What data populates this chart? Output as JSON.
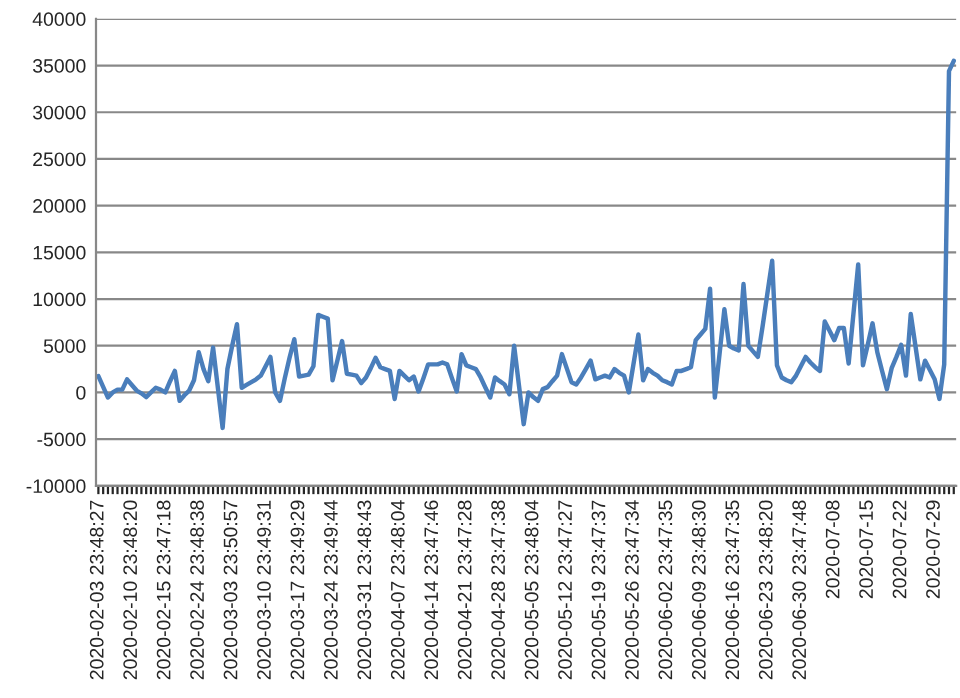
{
  "chart_data": {
    "type": "line",
    "categories": [
      "2020-02-03 23:48:27",
      null,
      null,
      null,
      null,
      null,
      null,
      "2020-02-10 23:48:20",
      null,
      null,
      null,
      null,
      null,
      null,
      "2020-02-15 23:47:18",
      null,
      null,
      null,
      null,
      null,
      null,
      "2020-02-24 23:48:38",
      null,
      null,
      null,
      null,
      null,
      null,
      "2020-03-03 23:50:57",
      null,
      null,
      null,
      null,
      null,
      null,
      "2020-03-10 23:49:31",
      null,
      null,
      null,
      null,
      null,
      null,
      "2020-03-17 23:49:29",
      null,
      null,
      null,
      null,
      null,
      null,
      "2020-03-24 23:49:44",
      null,
      null,
      null,
      null,
      null,
      null,
      "2020-03-31 23:48:43",
      null,
      null,
      null,
      null,
      null,
      null,
      "2020-04-07 23:48:04",
      null,
      null,
      null,
      null,
      null,
      null,
      "2020-04-14 23:47:46",
      null,
      null,
      null,
      null,
      null,
      null,
      "2020-04-21 23:47:28",
      null,
      null,
      null,
      null,
      null,
      null,
      "2020-04-28 23:47:38",
      null,
      null,
      null,
      null,
      null,
      null,
      "2020-05-05 23:48:04",
      null,
      null,
      null,
      null,
      null,
      null,
      "2020-05-12 23:47:27",
      null,
      null,
      null,
      null,
      null,
      null,
      "2020-05-19 23:47:37",
      null,
      null,
      null,
      null,
      null,
      null,
      "2020-05-26 23:47:34",
      null,
      null,
      null,
      null,
      null,
      null,
      "2020-06-02 23:47:35",
      null,
      null,
      null,
      null,
      null,
      null,
      "2020-06-09 23:48:30",
      null,
      null,
      null,
      null,
      null,
      null,
      "2020-06-16 23:47:35",
      null,
      null,
      null,
      null,
      null,
      null,
      "2020-06-23 23:48:20",
      null,
      null,
      null,
      null,
      null,
      null,
      "2020-06-30 23:47:48",
      null,
      null,
      null,
      null,
      null,
      null,
      "2020-07-08",
      null,
      null,
      null,
      null,
      null,
      null,
      "2020-07-15",
      null,
      null,
      null,
      null,
      null,
      null,
      "2020-07-22",
      null,
      null,
      null,
      null,
      null,
      null,
      "2020-07-29",
      null,
      null,
      null,
      null
    ],
    "series": [
      {
        "color": "#4a7ebb",
        "values": [
          1750,
          600,
          -550,
          0,
          300,
          300,
          1400,
          800,
          200,
          -100,
          -500,
          0,
          500,
          300,
          0,
          1200,
          2300,
          -900,
          -300,
          200,
          1300,
          4300,
          2500,
          1200,
          4800,
          500,
          -3800,
          2500,
          5000,
          7300,
          500,
          800,
          1100,
          1400,
          1800,
          2800,
          3800,
          0,
          -900,
          1500,
          3700,
          5700,
          1700,
          1800,
          1900,
          2800,
          8300,
          8100,
          7900,
          1300,
          3400,
          5500,
          2000,
          1900,
          1800,
          1000,
          1600,
          2600,
          3700,
          2700,
          2500,
          2300,
          -700,
          2300,
          1800,
          1300,
          1700,
          100,
          1500,
          3000,
          3000,
          3000,
          3200,
          3000,
          1500,
          100,
          4100,
          2900,
          2700,
          2500,
          1600,
          500,
          -550,
          1600,
          1200,
          850,
          -200,
          5000,
          800,
          -3400,
          0,
          -500,
          -900,
          350,
          570,
          1200,
          1800,
          4100,
          2600,
          1100,
          850,
          1600,
          2500,
          3400,
          1400,
          1600,
          1800,
          1600,
          2500,
          2100,
          1800,
          0,
          3100,
          6200,
          1300,
          2500,
          2100,
          1800,
          1300,
          1100,
          850,
          2300,
          2300,
          2500,
          2700,
          5600,
          6200,
          6800,
          11100,
          -550,
          4200,
          8900,
          5000,
          4700,
          4500,
          11600,
          5000,
          4400,
          3800,
          7100,
          10600,
          14100,
          2900,
          1600,
          1300,
          1100,
          1800,
          2800,
          3800,
          3200,
          2700,
          2300,
          7600,
          6600,
          5600,
          6900,
          6900,
          3100,
          8400,
          13700,
          2900,
          5100,
          7400,
          4300,
          2300,
          350,
          2600,
          3800,
          5100,
          1800,
          8400,
          4900,
          1400,
          3400,
          2400,
          1400,
          -700,
          3000,
          34400,
          35500
        ]
      }
    ],
    "ylim": [
      -10000,
      40000
    ],
    "yticks": [
      -10000,
      -5000,
      0,
      5000,
      10000,
      15000,
      20000,
      25000,
      30000,
      35000,
      40000
    ],
    "grid": "y",
    "legend": false,
    "marker": "none",
    "line_style": "solid"
  }
}
